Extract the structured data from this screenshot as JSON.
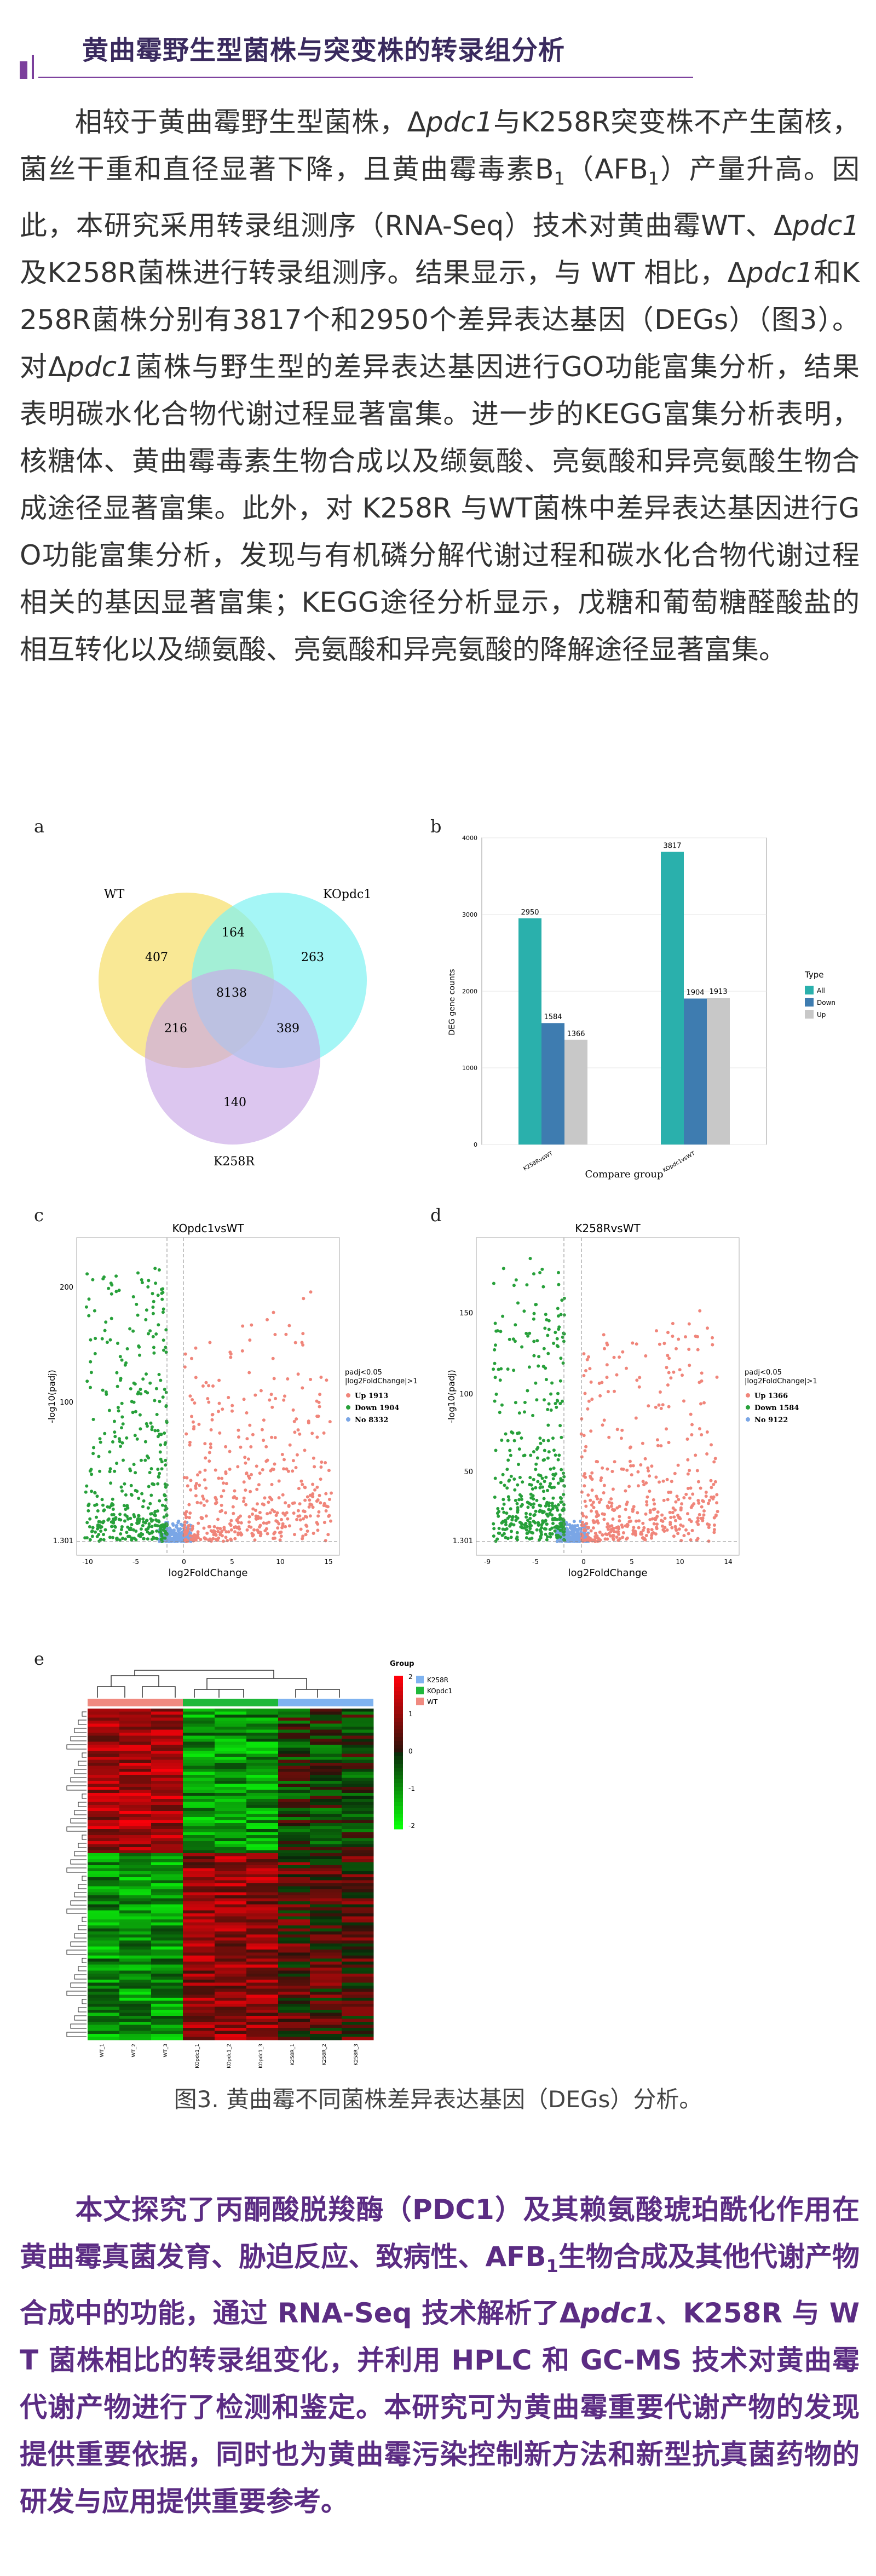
{
  "heading": "黄曲霉野生型菌株与突变株的转录组分析",
  "paragraph": {
    "s1": "相较于黄曲霉野生型菌株，Δ",
    "g1": "pdc1",
    "s2": "与K258R突变株不产生菌核，菌丝干重和直径显著下降，且黄曲霉毒素B",
    "sub1": "1",
    "s3": "（AFB",
    "sub2": "1",
    "s4": "）产量升高。因此，本研究采用转录组测序（RNA-Seq）技术对黄曲霉WT、Δ",
    "g2": "pdc1",
    "s5": "及K258R菌株进行转录组测序。结果显示，与 WT 相比，Δ",
    "g3": "pdc1",
    "s6": "和K258R菌株分别有3817个和2950个差异表达基因（DEGs）（图3）。对Δ",
    "g4": "pdc1",
    "s7": "菌株与野生型的差异表达基因进行GO功能富集分析，结果表明碳水化合物代谢过程显著富集。进一步的KEGG富集分析表明，核糖体、黄曲霉毒素生物合成以及缬氨酸、亮氨酸和异亮氨酸生物合成途径显著富集。此外，对 K258R 与WT菌株中差异表达基因进行GO功能富集分析，发现与有机磷分解代谢过程和碳水化合物代谢过程相关的基因显著富集；KEGG途径分析显示，戊糖和葡萄糖醛酸盐的相互转化以及缬氨酸、亮氨酸和异亮氨酸的降解途径显著富集。"
  },
  "figure": {
    "panels": [
      "a",
      "b",
      "c",
      "d",
      "e"
    ],
    "venn": {
      "sets": [
        "WT",
        "KOpdc1",
        "K258R"
      ],
      "colors": [
        "#f7e27a",
        "#7ff2f2",
        "#c9a8e6"
      ],
      "regions": {
        "wt_only": "407",
        "ko_only": "263",
        "k_only": "140",
        "wt_ko": "164",
        "wt_k": "216",
        "ko_k": "389",
        "all": "8138"
      }
    },
    "volcano_c": {
      "title": "KOpdc1vsWT",
      "xlabel": "log2FoldChange",
      "ylabel": "-log10(padj)",
      "yticks": [
        "200",
        "100",
        "1.301"
      ],
      "xticks": [
        "-10",
        "-5",
        "0",
        "5",
        "10",
        "15"
      ],
      "legend_title": [
        "padj<0.05",
        "|log2FoldChange|>1"
      ],
      "legend": [
        "Up 1913",
        "Down 1904",
        "No 8332"
      ]
    },
    "volcano_d": {
      "title": "K258RvsWT",
      "xlabel": "log2FoldChange",
      "ylabel": "-log10(padj)",
      "yticks": [
        "150",
        "100",
        "50",
        "1.301"
      ],
      "xticks": [
        "-9",
        "-5",
        "0",
        "5",
        "10",
        "14"
      ],
      "legend_title": [
        "padj<0.05",
        "|log2FoldChange|>1"
      ],
      "legend": [
        "Up 1366",
        "Down 1584",
        "No 9122"
      ]
    },
    "heatmap": {
      "legend_title": "Group",
      "groups": [
        "K258R",
        "KOpdc1",
        "WT"
      ],
      "group_colors": [
        "#7fb3f0",
        "#1fb83a",
        "#f08a80"
      ],
      "scale": [
        "2",
        "1",
        "0",
        "-1",
        "-2"
      ],
      "columns": [
        "WT_1",
        "WT_2",
        "WT_3",
        "KOpdc1_1",
        "KOpdc1_2",
        "KOpdc1_3",
        "K258R_1",
        "K258R_2",
        "K258R_3"
      ]
    },
    "caption": "图3. 黄曲霉不同菌株差异表达基因（DEGs）分析。"
  },
  "chart_data": {
    "type": "bar",
    "title": "",
    "xlabel": "Compare group",
    "ylabel": "DEG gene counts",
    "ylim": [
      0,
      4000
    ],
    "yticks": [
      0,
      1000,
      2000,
      3000,
      4000
    ],
    "categories": [
      "K258RvsWT",
      "KOpdc1vsWT"
    ],
    "legend_title": "Type",
    "series": [
      {
        "name": "All",
        "color": "#2ab0ac",
        "values": [
          2950,
          3817
        ]
      },
      {
        "name": "Down",
        "color": "#3e7cb0",
        "values": [
          1584,
          1904
        ]
      },
      {
        "name": "Up",
        "color": "#c8c8c8",
        "values": [
          1366,
          1913
        ]
      }
    ]
  },
  "conclusion": {
    "t1": "本文探究了丙酮酸脱羧酶（PDC1）及其赖氨酸琥珀酰化作用在黄曲霉真菌发育、胁迫反应、致病性、AFB",
    "sub": "1",
    "t2": "生物合成及其他代谢产物合成中的功能，通过 RNA-Seq 技术解析了Δ",
    "g": "pdc1",
    "t3": "、K258R 与 WT 菌株相比的转录组变化，并利用 HPLC 和 GC-MS 技术对黄曲霉代谢产物进行了检测和鉴定。本研究可为黄曲霉重要代谢产物的发现提供重要依据，同时也为黄曲霉污染控制新方法和新型抗真菌药物的研发与应用提供重要参考。"
  }
}
